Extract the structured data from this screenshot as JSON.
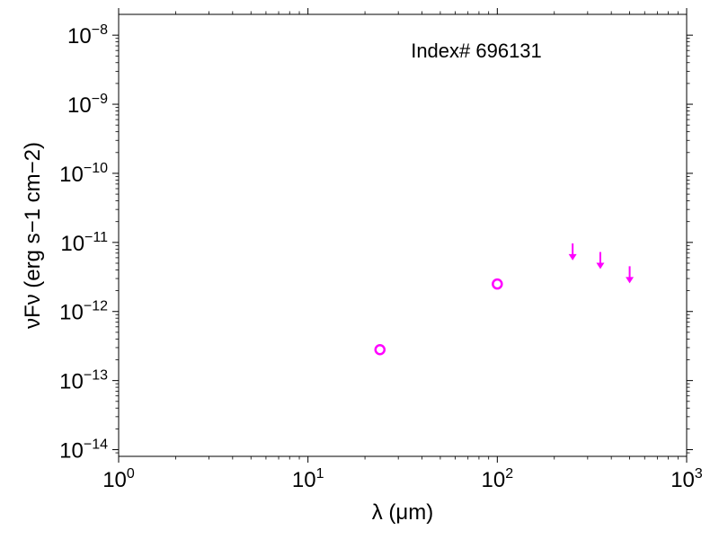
{
  "chart_data": {
    "type": "scatter",
    "annotation": "Index# 696131",
    "xlabel": "λ (μm)",
    "ylabel": "νFν (erg s−1 cm−2)",
    "xscale": "log",
    "yscale": "log",
    "xlim": [
      1,
      1000
    ],
    "ylim": [
      8e-15,
      2e-08
    ],
    "x_ticks": [
      {
        "value": 1,
        "base": "10",
        "exp": "0"
      },
      {
        "value": 10,
        "base": "10",
        "exp": "1"
      },
      {
        "value": 100,
        "base": "10",
        "exp": "2"
      },
      {
        "value": 1000,
        "base": "10",
        "exp": "3"
      }
    ],
    "y_ticks": [
      {
        "value": 1e-14,
        "base": "10",
        "exp": "−14"
      },
      {
        "value": 1e-13,
        "base": "10",
        "exp": "−13"
      },
      {
        "value": 1e-12,
        "base": "10",
        "exp": "−12"
      },
      {
        "value": 1e-11,
        "base": "10",
        "exp": "−11"
      },
      {
        "value": 1e-10,
        "base": "10",
        "exp": "−10"
      },
      {
        "value": 1e-09,
        "base": "10",
        "exp": "−9"
      },
      {
        "value": 1e-08,
        "base": "10",
        "exp": "−8"
      }
    ],
    "grid": false,
    "color": "#ff00ff",
    "series": [
      {
        "marker": "open-circle",
        "points": [
          {
            "x": 24,
            "y": 2.8e-13
          },
          {
            "x": 100,
            "y": 2.5e-12
          }
        ]
      },
      {
        "marker": "upper-limit-arrow",
        "points": [
          {
            "x": 250,
            "y": 6e-12
          },
          {
            "x": 350,
            "y": 4.5e-12
          },
          {
            "x": 500,
            "y": 2.8e-12
          }
        ]
      }
    ]
  }
}
